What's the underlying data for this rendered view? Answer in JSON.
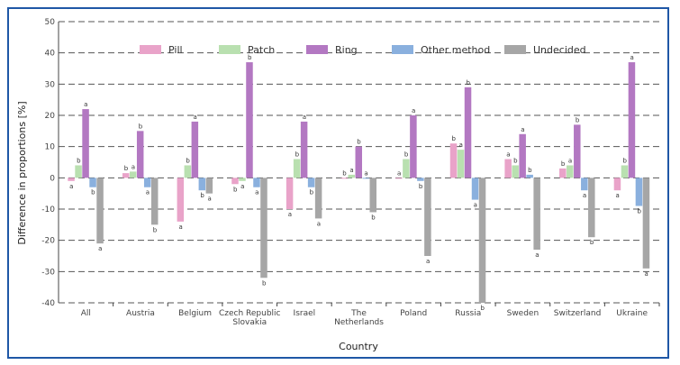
{
  "chart_data": {
    "type": "bar",
    "xlabel": "Country",
    "ylabel": "Difference in proportions [%]",
    "ylim": [
      -40,
      50
    ],
    "yticks": [
      50,
      40,
      30,
      20,
      10,
      0,
      -10,
      -20,
      -30,
      -40
    ],
    "grid": true,
    "grid_style": "dashed",
    "legend_position": "top",
    "categories": [
      "All",
      "Austria",
      "Belgium",
      "Czech Republic Slovakia",
      "Israel",
      "The Netherlands",
      "Poland",
      "Russia",
      "Sweden",
      "Switzerland",
      "Ukraine"
    ],
    "series": [
      {
        "name": "Pill",
        "color": "#e9a3c9",
        "values": [
          -1,
          1.5,
          -14,
          -2,
          -10,
          0,
          0,
          11,
          6,
          3,
          -4
        ]
      },
      {
        "name": "Patch",
        "color": "#b9e0b0",
        "values": [
          4,
          2,
          4,
          -1,
          6,
          1,
          6,
          9,
          4,
          4,
          4
        ]
      },
      {
        "name": "Ring",
        "color": "#b378c2",
        "values": [
          22,
          15,
          18,
          37,
          18,
          10,
          20,
          29,
          14,
          17,
          37
        ]
      },
      {
        "name": "Other method",
        "color": "#8ab0de",
        "values": [
          -3,
          -3,
          -4,
          -3,
          -3,
          0,
          -1,
          -7,
          1,
          -4,
          -9
        ]
      },
      {
        "name": "Undecided",
        "color": "#a6a6a6",
        "values": [
          -21,
          -15,
          -5,
          -32,
          -13,
          -11,
          -25,
          -40,
          -23,
          -19,
          -29
        ]
      }
    ],
    "marker_labels": [
      "a",
      "b"
    ]
  }
}
